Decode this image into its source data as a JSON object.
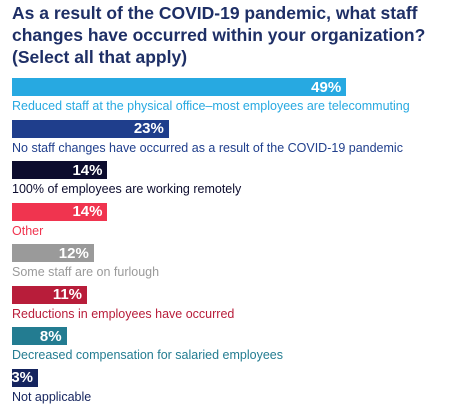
{
  "chart_data": {
    "type": "bar",
    "orientation": "horizontal",
    "title": "As a result of the COVID-19 pandemic, what staff changes have occurred within your organization? (Select all that apply)",
    "xlabel": "",
    "ylabel": "",
    "unit": "%",
    "xlim": [
      0,
      100
    ],
    "grid": false,
    "legend": "none",
    "categories": [
      "Reduced staff at the physical office–most employees are telecommuting",
      "No staff changes have occurred as a result of the COVID-19 pandemic",
      "100% of employees are working remotely",
      "Other",
      "Some staff are on furlough",
      "Reductions in employees have occurred",
      "Decreased compensation for salaried employees",
      "Not applicable"
    ],
    "values": [
      49,
      23,
      14,
      14,
      12,
      11,
      8,
      3
    ],
    "value_labels": [
      "49%",
      "23%",
      "14%",
      "14%",
      "12%",
      "11%",
      "8%",
      "3%"
    ],
    "bar_colors": [
      "#27a9e1",
      "#1f3e8c",
      "#0c0c2e",
      "#f0344f",
      "#9a9a9a",
      "#b81d3a",
      "#237c91",
      "#15245e"
    ],
    "label_colors": [
      "#27a9e1",
      "#1f3e8c",
      "#0c0c2e",
      "#f0344f",
      "#9a9a9a",
      "#b81d3a",
      "#237c91",
      "#15245e"
    ]
  },
  "colors": {
    "title": "#1e2f66"
  }
}
